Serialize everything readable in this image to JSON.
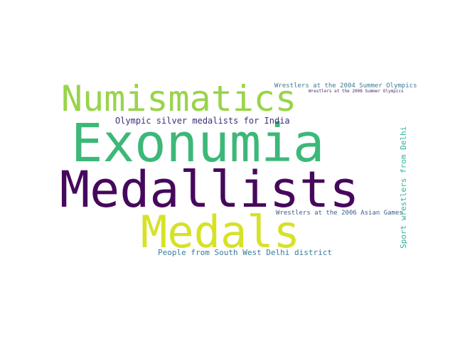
{
  "words": [
    {
      "text": "Exonumia",
      "color": "#3cb878"
    },
    {
      "text": "Medallists",
      "color": "#46085c"
    },
    {
      "text": "Numismatics",
      "color": "#98d44a"
    },
    {
      "text": "Medals",
      "color": "#d6e226"
    },
    {
      "text": "Olympic silver medalists for India",
      "color": "#3b2f7a"
    },
    {
      "text": "Wrestlers at the 2004 Summer Olympics",
      "color": "#3a7a98"
    },
    {
      "text": "Wrestlers at the 2008 Summer Olympics",
      "color": "#482a6e"
    },
    {
      "text": "Sport wrestlers from Delhi",
      "color": "#35b29a"
    },
    {
      "text": "Wrestlers at the 2006 Asian Games",
      "color": "#3b5e8c"
    },
    {
      "text": "People from South West Delhi district",
      "color": "#3a7a98"
    }
  ]
}
